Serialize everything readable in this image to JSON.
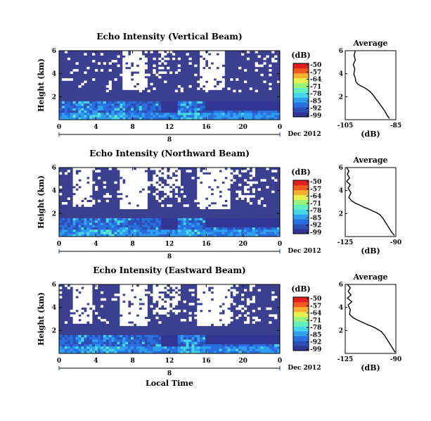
{
  "colors": {
    "background_fill": "#3a3f8f",
    "colormap": [
      "#313695",
      "#2d4fb5",
      "#2a6fe0",
      "#2f9ff0",
      "#46d6e8",
      "#62f0c0",
      "#9bf47a",
      "#e8f050",
      "#f8b030",
      "#f05a20",
      "#e02020"
    ]
  },
  "colorbar": {
    "unit": "(dB)",
    "ticks": [
      "-50",
      "-57",
      "-64",
      "-71",
      "-78",
      "-85",
      "-92",
      "-99"
    ]
  },
  "date_label": "Dec 2012",
  "bottom_xlabel": "Local Time",
  "chart_data": [
    {
      "type": "heatmap",
      "title": "Echo Intensity (Vertical Beam)",
      "ylabel": "Height (km)",
      "x_ticks": [
        "0",
        "4",
        "8",
        "12",
        "16",
        "20",
        "0"
      ],
      "y_ticks": [
        "6",
        "4",
        "2"
      ],
      "xlim": [
        0,
        24
      ],
      "ylim": [
        0,
        6
      ],
      "date_day": "8",
      "clim": [
        -99,
        -50
      ],
      "average_profile": {
        "title": "Average",
        "xlabel": "(dB)",
        "x_ticks": [
          "-105",
          "-85"
        ],
        "y_ticks": [
          "6",
          "4",
          "2"
        ],
        "xlim": [
          -105,
          -85
        ],
        "x": [
          -101.0,
          -101.5,
          -101.0,
          -101.8,
          -101.2,
          -101.6,
          -101.0,
          -100.8,
          -100.0,
          -99.0,
          -97.5,
          -96.5,
          -95.5,
          -94.8,
          -94.2,
          -93.5,
          -92.5,
          -91.5,
          -90.5,
          -89.5,
          -88.5,
          -87.5
        ],
        "y": [
          6.0,
          5.6,
          5.2,
          4.8,
          4.4,
          4.0,
          3.6,
          3.3,
          3.1,
          2.95,
          2.8,
          2.65,
          2.5,
          2.35,
          2.2,
          2.0,
          1.7,
          1.4,
          1.1,
          0.8,
          0.4,
          0.1
        ]
      }
    },
    {
      "type": "heatmap",
      "title": "Echo Intensity (Northward Beam)",
      "ylabel": "Height (km)",
      "x_ticks": [
        "0",
        "4",
        "8",
        "12",
        "16",
        "20",
        "0"
      ],
      "y_ticks": [
        "6",
        "4",
        "2"
      ],
      "xlim": [
        0,
        24
      ],
      "ylim": [
        0,
        6
      ],
      "date_day": "8",
      "clim": [
        -99,
        -50
      ],
      "average_profile": {
        "title": "Average",
        "xlabel": "(dB)",
        "x_ticks": [
          "-125",
          "-90"
        ],
        "y_ticks": [
          "6",
          "4",
          "2"
        ],
        "xlim": [
          -125,
          -90
        ],
        "x": [
          -124.0,
          -122.5,
          -123.5,
          -122.0,
          -124.0,
          -121.5,
          -123.0,
          -121.0,
          -122.5,
          -120.5,
          -118.0,
          -114.5,
          -111.0,
          -108.0,
          -105.5,
          -103.0,
          -101.0,
          -99.0,
          -97.0,
          -95.0,
          -93.0,
          -91.0
        ],
        "y": [
          6.0,
          5.7,
          5.4,
          5.1,
          4.8,
          4.5,
          4.2,
          3.8,
          3.4,
          3.1,
          2.9,
          2.7,
          2.5,
          2.35,
          2.2,
          2.05,
          1.9,
          1.6,
          1.2,
          0.8,
          0.4,
          0.1
        ]
      }
    },
    {
      "type": "heatmap",
      "title": "Echo Intensity (Eastward Beam)",
      "ylabel": "Height (km)",
      "x_ticks": [
        "0",
        "4",
        "8",
        "12",
        "16",
        "20",
        "0"
      ],
      "y_ticks": [
        "6",
        "4",
        "2"
      ],
      "xlim": [
        0,
        24
      ],
      "ylim": [
        0,
        6
      ],
      "date_day": "8",
      "clim": [
        -99,
        -50
      ],
      "average_profile": {
        "title": "Average",
        "xlabel": "(dB)",
        "x_ticks": [
          "-125",
          "-90"
        ],
        "y_ticks": [
          "6",
          "4",
          "2"
        ],
        "xlim": [
          -125,
          -90
        ],
        "x": [
          -123.5,
          -121.5,
          -123.0,
          -121.0,
          -123.5,
          -120.5,
          -123.0,
          -121.5,
          -122.0,
          -119.5,
          -116.5,
          -113.0,
          -109.5,
          -106.5,
          -104.0,
          -102.0,
          -100.0,
          -98.0,
          -96.0,
          -94.0,
          -92.0,
          -90.5
        ],
        "y": [
          6.0,
          5.7,
          5.4,
          5.1,
          4.8,
          4.5,
          4.2,
          3.8,
          3.4,
          3.1,
          2.9,
          2.7,
          2.5,
          2.35,
          2.2,
          2.05,
          1.9,
          1.6,
          1.2,
          0.8,
          0.4,
          0.1
        ]
      }
    }
  ]
}
